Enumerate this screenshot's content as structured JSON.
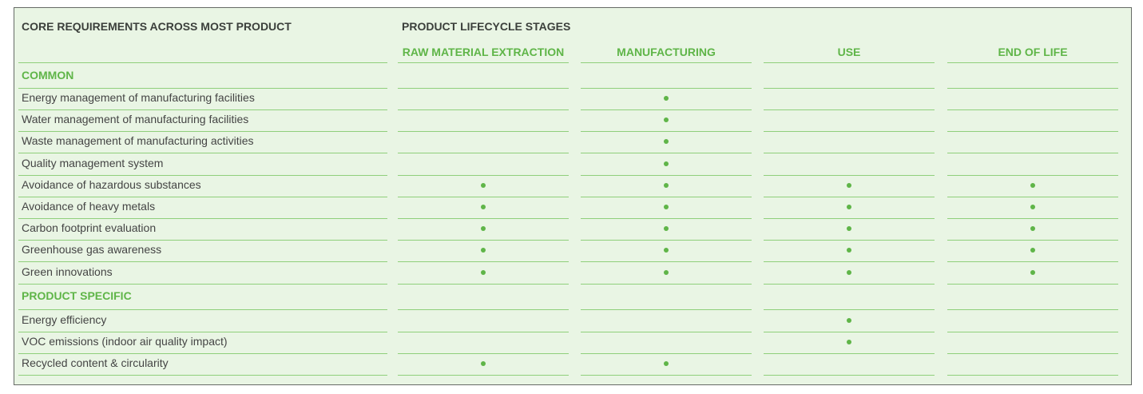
{
  "header": {
    "requirements_title": "CORE REQUIREMENTS ACROSS MOST PRODUCT",
    "lifecycle_title": "PRODUCT LIFECYCLE STAGES"
  },
  "stages": [
    "RAW MATERIAL EXTRACTION",
    "MANUFACTURING",
    "USE",
    "END OF LIFE"
  ],
  "rows": [
    {
      "type": "section",
      "label": "COMMON",
      "marks": [
        false,
        false,
        false,
        false
      ]
    },
    {
      "type": "item",
      "label": "Energy management of manufacturing facilities",
      "marks": [
        false,
        true,
        false,
        false
      ]
    },
    {
      "type": "item",
      "label": "Water management of manufacturing facilities",
      "marks": [
        false,
        true,
        false,
        false
      ]
    },
    {
      "type": "item",
      "label": "Waste management of manufacturing activities",
      "marks": [
        false,
        true,
        false,
        false
      ]
    },
    {
      "type": "item",
      "label": "Quality management system",
      "marks": [
        false,
        true,
        false,
        false
      ]
    },
    {
      "type": "item",
      "label": "Avoidance of hazardous substances",
      "marks": [
        true,
        true,
        true,
        true
      ]
    },
    {
      "type": "item",
      "label": "Avoidance of heavy metals",
      "marks": [
        true,
        true,
        true,
        true
      ]
    },
    {
      "type": "item",
      "label": "Carbon footprint evaluation",
      "marks": [
        true,
        true,
        true,
        true
      ]
    },
    {
      "type": "item",
      "label": "Greenhouse gas awareness",
      "marks": [
        true,
        true,
        true,
        true
      ]
    },
    {
      "type": "item",
      "label": "Green innovations",
      "marks": [
        true,
        true,
        true,
        true
      ]
    },
    {
      "type": "section",
      "label": "PRODUCT SPECIFIC",
      "marks": [
        false,
        false,
        false,
        false
      ]
    },
    {
      "type": "item",
      "label": "Energy efficiency",
      "marks": [
        false,
        false,
        true,
        false
      ]
    },
    {
      "type": "item",
      "label": "VOC emissions (indoor air quality impact)",
      "marks": [
        false,
        false,
        true,
        false
      ]
    },
    {
      "type": "item",
      "label": "Recycled content & circularity",
      "marks": [
        true,
        true,
        false,
        false
      ]
    }
  ],
  "colors": {
    "panel_background": "#e9f5e4",
    "accent_green": "#5fb548",
    "rule_green": "#8fcf7b",
    "header_text": "#3b3f3b",
    "body_text": "#444444"
  }
}
